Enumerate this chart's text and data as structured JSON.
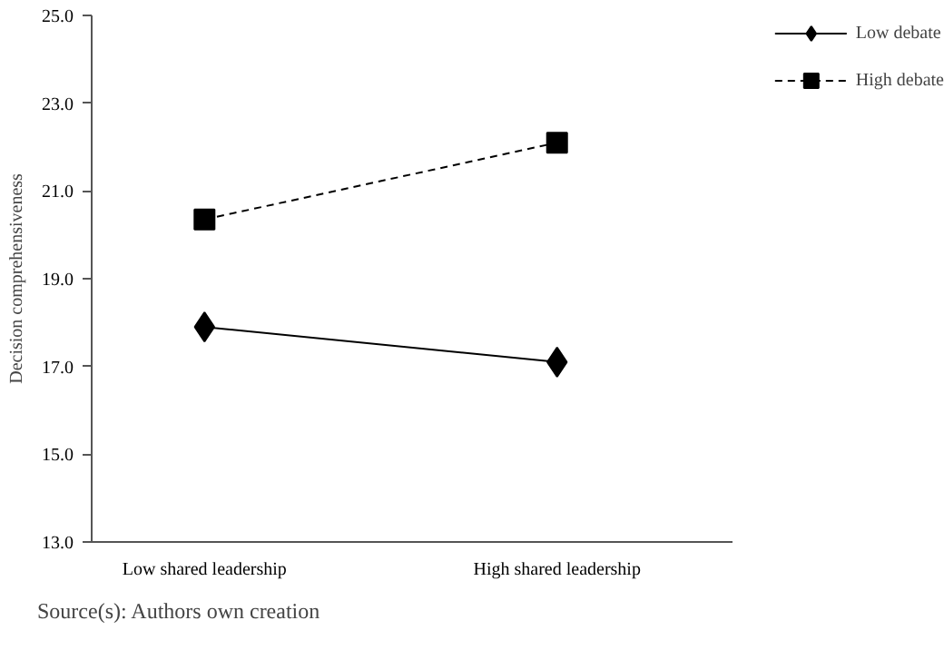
{
  "chart_data": {
    "type": "line",
    "ylabel": "Decision comprehensiveness",
    "categories": [
      "Low shared leadership",
      "High shared leadership"
    ],
    "series": [
      {
        "name": "Low debate",
        "color": "#000000",
        "values": [
          17.9,
          17.1
        ],
        "marker": "diamond",
        "line_style": "solid"
      },
      {
        "name": "High debate",
        "color": "#000000",
        "values": [
          20.35,
          22.1
        ],
        "marker": "square",
        "line_style": "dashed"
      }
    ],
    "ylim": [
      13,
      25
    ],
    "yticks": [
      {
        "value": 13,
        "label": "13.0"
      },
      {
        "value": 15,
        "label": "15.0"
      },
      {
        "value": 17,
        "label": "17.0"
      },
      {
        "value": 19,
        "label": "19.0"
      },
      {
        "value": 21,
        "label": "21.0"
      },
      {
        "value": 23,
        "label": "23.0"
      },
      {
        "value": 25,
        "label": "25.0"
      }
    ],
    "grid": false,
    "legend": "top right",
    "annotations": [
      "Source(s): Authors own creation"
    ]
  }
}
